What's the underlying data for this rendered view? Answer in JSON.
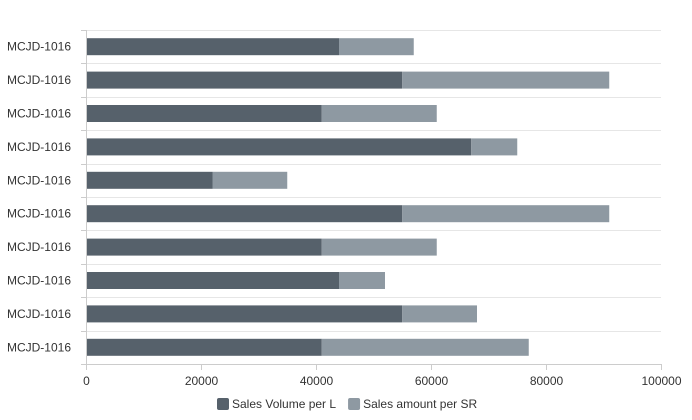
{
  "chart_data": {
    "type": "bar",
    "orientation": "horizontal",
    "stacked": true,
    "categories": [
      "MCJD-1016",
      "MCJD-1016",
      "MCJD-1016",
      "MCJD-1016",
      "MCJD-1016",
      "MCJD-1016",
      "MCJD-1016",
      "MCJD-1016",
      "MCJD-1016",
      "MCJD-1016"
    ],
    "series": [
      {
        "name": "Sales Volume per L",
        "color": "#56616b",
        "values": [
          44000,
          55000,
          41000,
          67000,
          22000,
          55000,
          41000,
          44000,
          55000,
          41000
        ]
      },
      {
        "name": "Sales amount per SR",
        "color": "#8e99a2",
        "values": [
          13000,
          36000,
          20000,
          8000,
          13000,
          36000,
          20000,
          8000,
          13000,
          36000
        ]
      }
    ],
    "xlim": [
      0,
      100000
    ],
    "xticks": [
      0,
      20000,
      40000,
      60000,
      80000,
      100000
    ],
    "title": "",
    "xlabel": "",
    "ylabel": "",
    "grid": "horizontal",
    "legend_position": "bottom-center"
  }
}
